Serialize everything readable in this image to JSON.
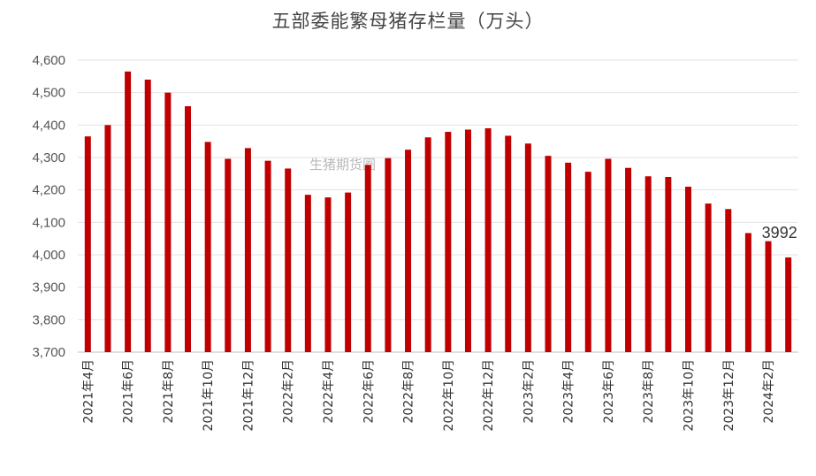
{
  "chart_data": {
    "type": "bar",
    "title": "五部委能繁母猪存栏量（万头）",
    "watermark": "生猪期货圈",
    "color": "#C00000",
    "ylim": [
      3700,
      4600
    ],
    "yticks": [
      "3,700",
      "3,800",
      "3,900",
      "4,000",
      "4,100",
      "4,200",
      "4,300",
      "4,400",
      "4,500",
      "4,600"
    ],
    "grid": true,
    "categories": [
      "2021年4月",
      "2021年5月",
      "2021年6月",
      "2021年7月",
      "2021年8月",
      "2021年9月",
      "2021年10月",
      "2021年11月",
      "2021年12月",
      "2022年1月",
      "2022年2月",
      "2022年3月",
      "2022年4月",
      "2022年5月",
      "2022年6月",
      "2022年7月",
      "2022年8月",
      "2022年9月",
      "2022年10月",
      "2022年11月",
      "2022年12月",
      "2023年1月",
      "2023年2月",
      "2023年3月",
      "2023年4月",
      "2023年5月",
      "2023年6月",
      "2023年7月",
      "2023年8月",
      "2023年9月",
      "2023年10月",
      "2023年11月",
      "2023年12月",
      "2024年1月",
      "2024年2月",
      "2024年3月"
    ],
    "xtick_labels": [
      "2021年4月",
      "2021年6月",
      "2021年8月",
      "2021年10月",
      "2021年12月",
      "2022年2月",
      "2022年4月",
      "2022年6月",
      "2022年8月",
      "2022年10月",
      "2022年12月",
      "2023年2月",
      "2023年4月",
      "2023年6月",
      "2023年8月",
      "2023年10月",
      "2023年12月",
      "2024年2月"
    ],
    "values": [
      4365,
      4400,
      4565,
      4540,
      4500,
      4458,
      4348,
      4296,
      4329,
      4290,
      4266,
      4185,
      4177,
      4192,
      4277,
      4298,
      4324,
      4362,
      4379,
      4386,
      4390,
      4367,
      4343,
      4305,
      4284,
      4256,
      4296,
      4268,
      4242,
      4240,
      4210,
      4158,
      4141,
      4067,
      4042,
      3992
    ],
    "annotation": {
      "text": "3992"
    }
  }
}
